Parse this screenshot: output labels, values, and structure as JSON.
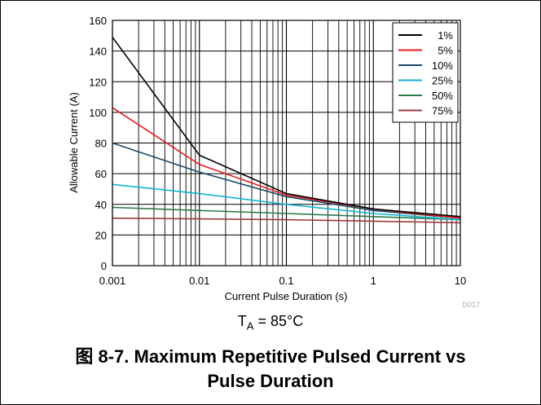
{
  "figure": {
    "condition_symbol": "T",
    "condition_subscript": "A",
    "condition_value": " = 85°C",
    "caption_line1": "图 8-7. Maximum Repetitive Pulsed Current vs",
    "caption_line2": "Pulse Duration",
    "chart_id": "D017"
  },
  "chart_data": {
    "type": "line",
    "xlabel": "Current Pulse Duration (s)",
    "ylabel": "Allowable Current (A)",
    "xscale": "log",
    "xlim": [
      0.001,
      10
    ],
    "ylim": [
      0,
      160
    ],
    "x_ticks": [
      0.001,
      0.01,
      0.1,
      1,
      10
    ],
    "x_tick_labels": [
      "0.001",
      "0.01",
      "0.1",
      "1",
      "10"
    ],
    "y_ticks": [
      0,
      20,
      40,
      60,
      80,
      100,
      120,
      140,
      160
    ],
    "y_tick_labels": [
      "0",
      "20",
      "40",
      "60",
      "80",
      "100",
      "120",
      "140",
      "160"
    ],
    "grid": true,
    "legend_position": "top-right",
    "series": [
      {
        "name": "1%",
        "color": "#000000",
        "x": [
          0.001,
          0.01,
          0.1,
          1,
          10
        ],
        "y": [
          149,
          72,
          47,
          37,
          32
        ]
      },
      {
        "name": "5%",
        "color": "#e8181e",
        "x": [
          0.001,
          0.01,
          0.1,
          1,
          10
        ],
        "y": [
          103,
          66,
          46,
          37,
          31
        ]
      },
      {
        "name": "10%",
        "color": "#174a66",
        "x": [
          0.001,
          0.01,
          0.1,
          1,
          10
        ],
        "y": [
          80,
          61,
          45,
          36,
          31
        ]
      },
      {
        "name": "25%",
        "color": "#11b5cf",
        "x": [
          0.001,
          0.01,
          0.1,
          1,
          10
        ],
        "y": [
          53,
          47,
          40,
          34,
          30
        ]
      },
      {
        "name": "50%",
        "color": "#2b7a4a",
        "x": [
          0.001,
          0.01,
          0.1,
          1,
          10
        ],
        "y": [
          38,
          36,
          34,
          32,
          30
        ]
      },
      {
        "name": "75%",
        "color": "#9e3b3b",
        "x": [
          0.001,
          0.01,
          0.1,
          1,
          10
        ],
        "y": [
          31,
          30.5,
          30,
          29,
          28
        ]
      }
    ]
  }
}
